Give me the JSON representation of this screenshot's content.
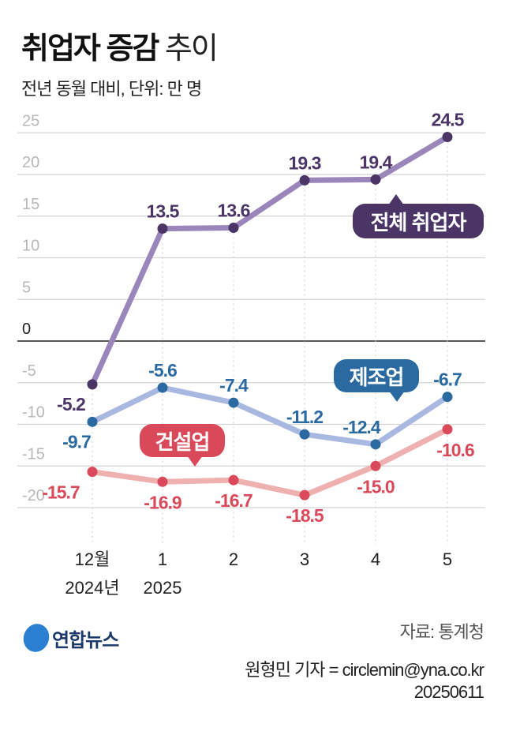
{
  "title": {
    "bold": "취업자 증감",
    "light": "추이"
  },
  "subtitle": "전년 동월 대비, 단위: 만 명",
  "chart_data": {
    "type": "line",
    "categories": [
      "12월\n2024년",
      "1\n2025",
      "2",
      "3",
      "4",
      "5"
    ],
    "category_lines": [
      [
        "12월",
        "2024년"
      ],
      [
        "1",
        "2025"
      ],
      [
        "2",
        ""
      ],
      [
        "3",
        ""
      ],
      [
        "4",
        ""
      ],
      [
        "5",
        ""
      ]
    ],
    "ylim": [
      -25,
      25
    ],
    "yticks": [
      "25",
      "20",
      "15",
      "10",
      "5",
      "0",
      "-5",
      "-10",
      "-15",
      "-20"
    ],
    "ytick_values": [
      25,
      20,
      15,
      10,
      5,
      0,
      -5,
      -10,
      -15,
      -20
    ],
    "grid": true,
    "series": [
      {
        "name": "전체 취업자",
        "values": [
          -5.2,
          13.5,
          13.6,
          19.3,
          19.4,
          24.5
        ],
        "labels": [
          "-5.2",
          "13.5",
          "13.6",
          "19.3",
          "19.4",
          "24.5"
        ],
        "line_color": "#9b86bb",
        "point_color": "#4a3566"
      },
      {
        "name": "제조업",
        "values": [
          -9.7,
          -5.6,
          -7.4,
          -11.2,
          -12.4,
          -6.7
        ],
        "labels": [
          "-9.7",
          "-5.6",
          "-7.4",
          "-11.2",
          "-12.4",
          "-6.7"
        ],
        "line_color": "#a9b8e0",
        "point_color": "#2a6aa0"
      },
      {
        "name": "건설업",
        "values": [
          -15.7,
          -16.9,
          -16.7,
          -18.5,
          -15.0,
          -10.6
        ],
        "labels": [
          "-15.7",
          "-16.9",
          "-16.7",
          "-18.5",
          "-15.0",
          "-10.6"
        ],
        "line_color": "#efb0b0",
        "point_color": "#d9495a"
      }
    ]
  },
  "logo": "연합뉴스",
  "source": "자료: 통계청",
  "credit": "원형민 기자 = circlemin@yna.co.kr",
  "date": "20250611"
}
